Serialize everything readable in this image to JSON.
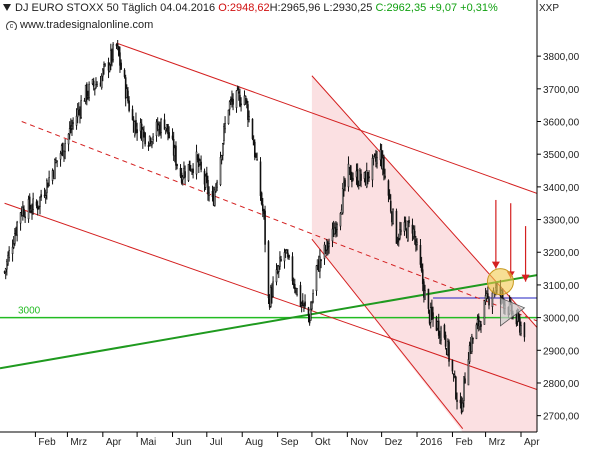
{
  "header": {
    "title": "DJ EURO STOXX 50 Täglich",
    "date": "04.04.2016",
    "open": "O:2948,62",
    "high_low": "H:2965,96 L:2930,25",
    "close_change": "C:2962,35 +9,07 +0,31%",
    "source": "www.tradesignalonline.com",
    "currency": "XXP"
  },
  "colors": {
    "candle": "#111111",
    "channel": "#d42020",
    "support": "#1f9a1f",
    "level": "#22bb22",
    "zone": "#fadadd",
    "marker": "#2020c0",
    "highlight": "#f2c94c"
  },
  "chart_data": {
    "type": "candlestick",
    "title": "DJ EURO STOXX 50 Täglich",
    "ylim": [
      2650,
      3880
    ],
    "y_ticks": [
      "2700,00",
      "2800,00",
      "2900,00",
      "3000,00",
      "3100,00",
      "3200,00",
      "3300,00",
      "3400,00",
      "3500,00",
      "3600,00",
      "3700,00",
      "3800,00"
    ],
    "x_ticks": [
      "Feb",
      "Mrz",
      "Apr",
      "Mai",
      "Jun",
      "Jul",
      "Aug",
      "Sep",
      "Okt",
      "Nov",
      "Dez",
      "2016",
      "Feb",
      "Mrz",
      "Apr"
    ],
    "x_tick_dates": [
      "2015-02-01",
      "2015-03-01",
      "2015-04-01",
      "2015-05-01",
      "2015-06-01",
      "2015-07-01",
      "2015-08-01",
      "2015-09-01",
      "2015-10-01",
      "2015-11-01",
      "2015-12-01",
      "2016-01-01",
      "2016-02-01",
      "2016-03-01",
      "2016-04-01"
    ],
    "series": [
      {
        "name": "DJ EURO STOXX 50",
        "closes": [
          [
            "2015-01-05",
            3140
          ],
          [
            "2015-01-19",
            3330
          ],
          [
            "2015-02-02",
            3340
          ],
          [
            "2015-02-16",
            3450
          ],
          [
            "2015-03-02",
            3560
          ],
          [
            "2015-03-16",
            3680
          ],
          [
            "2015-03-30",
            3730
          ],
          [
            "2015-04-13",
            3828
          ],
          [
            "2015-04-27",
            3600
          ],
          [
            "2015-05-11",
            3550
          ],
          [
            "2015-05-25",
            3600
          ],
          [
            "2015-06-08",
            3440
          ],
          [
            "2015-06-22",
            3480
          ],
          [
            "2015-07-06",
            3350
          ],
          [
            "2015-07-20",
            3650
          ],
          [
            "2015-08-03",
            3680
          ],
          [
            "2015-08-10",
            3560
          ],
          [
            "2015-08-20",
            3300
          ],
          [
            "2015-08-24",
            3050
          ],
          [
            "2015-09-07",
            3200
          ],
          [
            "2015-09-21",
            3050
          ],
          [
            "2015-09-29",
            3000
          ],
          [
            "2015-10-05",
            3150
          ],
          [
            "2015-10-19",
            3250
          ],
          [
            "2015-11-02",
            3440
          ],
          [
            "2015-11-16",
            3420
          ],
          [
            "2015-11-30",
            3500
          ],
          [
            "2015-12-14",
            3250
          ],
          [
            "2015-12-28",
            3280
          ],
          [
            "2016-01-11",
            3010
          ],
          [
            "2016-01-25",
            2950
          ],
          [
            "2016-02-08",
            2710
          ],
          [
            "2016-02-15",
            2900
          ],
          [
            "2016-02-29",
            3030
          ],
          [
            "2016-03-07",
            3090
          ],
          [
            "2016-03-14",
            3070
          ],
          [
            "2016-03-21",
            3030
          ],
          [
            "2016-03-28",
            2990
          ],
          [
            "2016-04-04",
            2962
          ]
        ]
      }
    ],
    "trendlines": [
      {
        "color": "red",
        "points": [
          [
            "2015-04-13",
            3840
          ],
          [
            "2016-04-15",
            3380
          ]
        ]
      },
      {
        "color": "red",
        "dashed": true,
        "points": [
          [
            "2015-01-20",
            3600
          ],
          [
            "2016-04-15",
            2990
          ]
        ]
      },
      {
        "color": "red",
        "points": [
          [
            "2015-01-05",
            3350
          ],
          [
            "2016-04-15",
            2780
          ]
        ]
      },
      {
        "color": "red",
        "points": [
          [
            "2015-10-01",
            3740
          ],
          [
            "2016-04-15",
            2970
          ]
        ]
      },
      {
        "color": "red",
        "points": [
          [
            "2015-10-01",
            3240
          ],
          [
            "2016-02-10",
            2660
          ]
        ]
      },
      {
        "color": "green",
        "points": [
          [
            "2015-01-01",
            2845
          ],
          [
            "2016-04-15",
            3130
          ]
        ]
      }
    ],
    "shaded_zone": {
      "from_date": "2015-10-01",
      "to_date": "2016-04-15"
    },
    "horizontal_levels": [
      {
        "value": 3000,
        "label": "3000",
        "color": "green"
      },
      {
        "value": 3060,
        "color": "blue",
        "from_date": "2016-01-15"
      }
    ],
    "annotations": [
      {
        "type": "arrow_down",
        "date": "2016-03-10",
        "from": 3360,
        "to": 3150
      },
      {
        "type": "arrow_down",
        "date": "2016-03-23",
        "from": 3350,
        "to": 3120
      },
      {
        "type": "arrow_down",
        "date": "2016-04-05",
        "from": 3280,
        "to": 3110
      },
      {
        "type": "circle",
        "date": "2016-03-14",
        "value": 3110
      },
      {
        "type": "triangle",
        "points": [
          [
            "2016-03-14",
            3060
          ],
          [
            "2016-04-04",
            3030
          ],
          [
            "2016-03-14",
            2975
          ]
        ]
      }
    ]
  }
}
